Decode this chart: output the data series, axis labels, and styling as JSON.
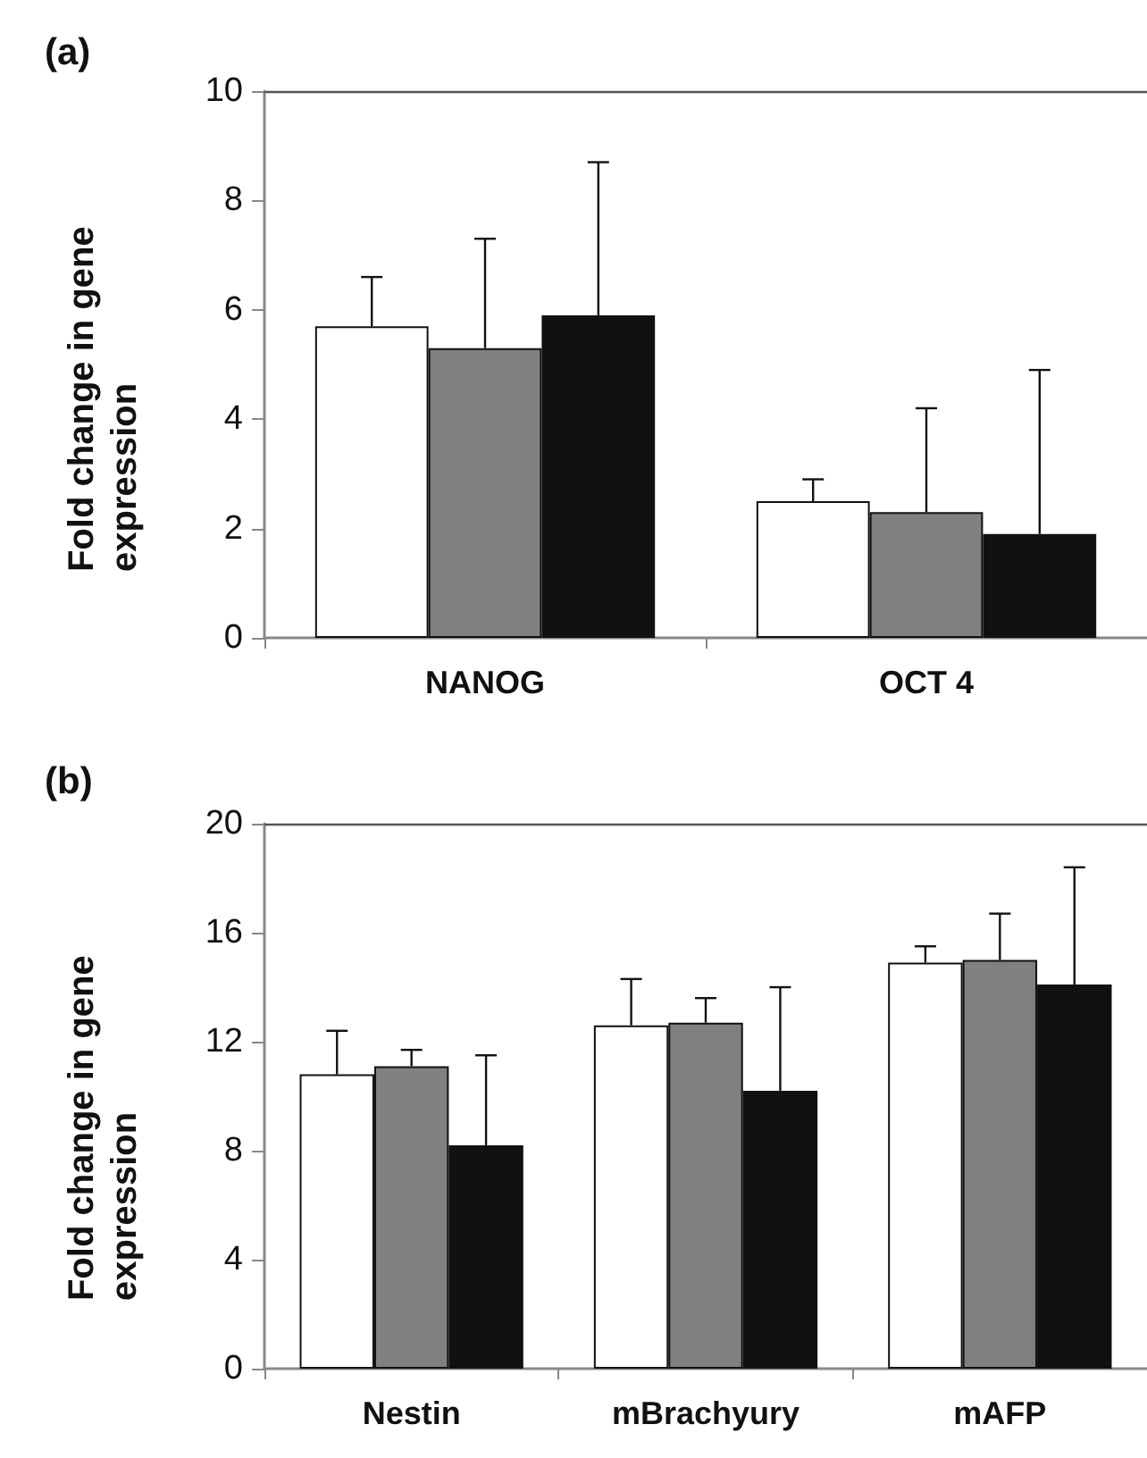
{
  "chart_data": [
    {
      "type": "bar",
      "title": "(a)",
      "ylabel": "Fold change in gene expression",
      "categories": [
        "NANOG",
        "OCT 4"
      ],
      "series": [
        {
          "color": "#ffffff",
          "values": [
            5.7,
            2.5
          ],
          "errors": [
            [
              5.7,
              6.6
            ],
            [
              2.5,
              2.9
            ]
          ]
        },
        {
          "color": "#808080",
          "values": [
            5.3,
            2.3
          ],
          "errors": [
            [
              5.3,
              7.3
            ],
            [
              2.3,
              4.2
            ]
          ]
        },
        {
          "color": "#111111",
          "values": [
            5.9,
            1.9
          ],
          "errors": [
            [
              5.9,
              8.7
            ],
            [
              1.9,
              4.9
            ]
          ]
        }
      ],
      "ylim": [
        0,
        10
      ],
      "yticks": [
        0,
        2,
        4,
        6,
        8,
        10
      ]
    },
    {
      "type": "bar",
      "title": "(b)",
      "ylabel": "Fold change in gene expression",
      "categories": [
        "Nestin",
        "mBrachyury",
        "mAFP"
      ],
      "series": [
        {
          "color": "#ffffff",
          "values": [
            10.8,
            12.6,
            14.9
          ],
          "errors": [
            [
              10.8,
              12.4
            ],
            [
              12.6,
              14.3
            ],
            [
              14.9,
              15.5
            ]
          ]
        },
        {
          "color": "#808080",
          "values": [
            11.1,
            12.7,
            15.0
          ],
          "errors": [
            [
              11.1,
              11.7
            ],
            [
              12.7,
              13.6
            ],
            [
              15.0,
              16.7
            ]
          ]
        },
        {
          "color": "#111111",
          "values": [
            8.2,
            10.2,
            14.1
          ],
          "errors": [
            [
              8.2,
              11.5
            ],
            [
              10.2,
              14.0
            ],
            [
              14.1,
              18.4
            ]
          ]
        }
      ],
      "ylim": [
        0,
        20
      ],
      "yticks": [
        0,
        4,
        8,
        12,
        16,
        20
      ]
    }
  ]
}
